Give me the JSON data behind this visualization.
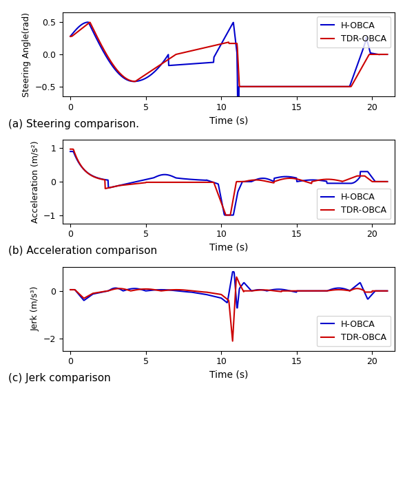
{
  "blue_color": "#0000cc",
  "red_color": "#cc0000",
  "line_width": 1.5,
  "xlabel": "Time (s)",
  "xlim": [
    -0.5,
    21.5
  ],
  "xticks": [
    0,
    5,
    10,
    15,
    20
  ],
  "plot_a": {
    "ylabel": "Steering Angle(rad)",
    "ylim": [
      -0.65,
      0.65
    ],
    "yticks": [
      -0.5,
      0.0,
      0.5
    ],
    "caption": "(a) Steering comparison.",
    "legend_loc": "upper right"
  },
  "plot_b": {
    "ylabel": "Acceleration (m/s²)",
    "ylim": [
      -1.25,
      1.25
    ],
    "yticks": [
      -1,
      0,
      1
    ],
    "caption": "(b) Acceleration comparison",
    "legend_loc": "lower right"
  },
  "plot_c": {
    "ylabel": "Jerk (m/s³)",
    "ylim": [
      -2.5,
      1.0
    ],
    "yticks": [
      -2,
      0
    ],
    "caption": "(c) Jerk comparison",
    "legend_loc": "lower right"
  },
  "legend_label_blue": "H-OBCA",
  "legend_label_red": "TDR-OBCA"
}
